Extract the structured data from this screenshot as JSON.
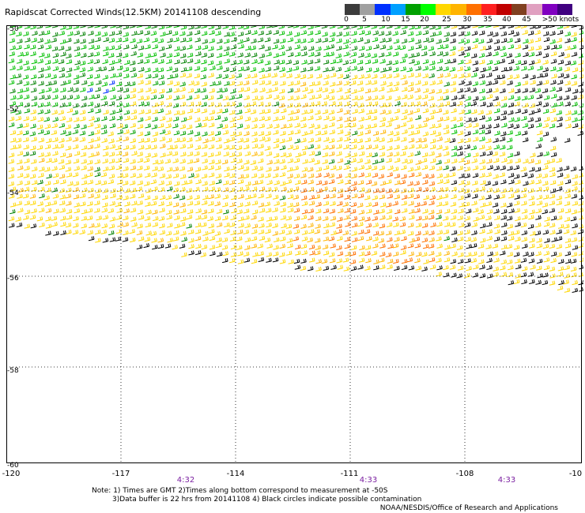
{
  "title": "Rapidscat Corrected Winds(12.5KM) 20141108 descending",
  "legend": {
    "colors": [
      "#3c3c3c",
      "#a0a0a0",
      "#0030ff",
      "#00a0ff",
      "#00a000",
      "#00ff00",
      "#ffd700",
      "#ffb400",
      "#ff7000",
      "#ff2020",
      "#c00000",
      "#804020",
      "#e0a0c0",
      "#8000c0",
      "#400080"
    ],
    "labels": [
      "0",
      "5",
      "10",
      "15",
      "20",
      "25",
      "30",
      "35",
      "40",
      "45",
      ">50 knots"
    ]
  },
  "axes": {
    "y_labels": [
      "-50",
      "-52",
      "-54",
      "-56",
      "-58",
      "-60"
    ],
    "x_labels": [
      "-120",
      "-117",
      "-114",
      "-111",
      "-108",
      "-10"
    ],
    "time_labels": [
      "4:32",
      "4:33",
      "4:33"
    ]
  },
  "notes": [
    "Note: 1) Times are GMT 2)Times along bottom correspond to measurement at -50S",
    "3)Data buffer is 22 hrs from 20141108 4) Black circles indicate possible contamination"
  ],
  "credit": "NOAA/NESDIS/Office of Research and Applications"
}
